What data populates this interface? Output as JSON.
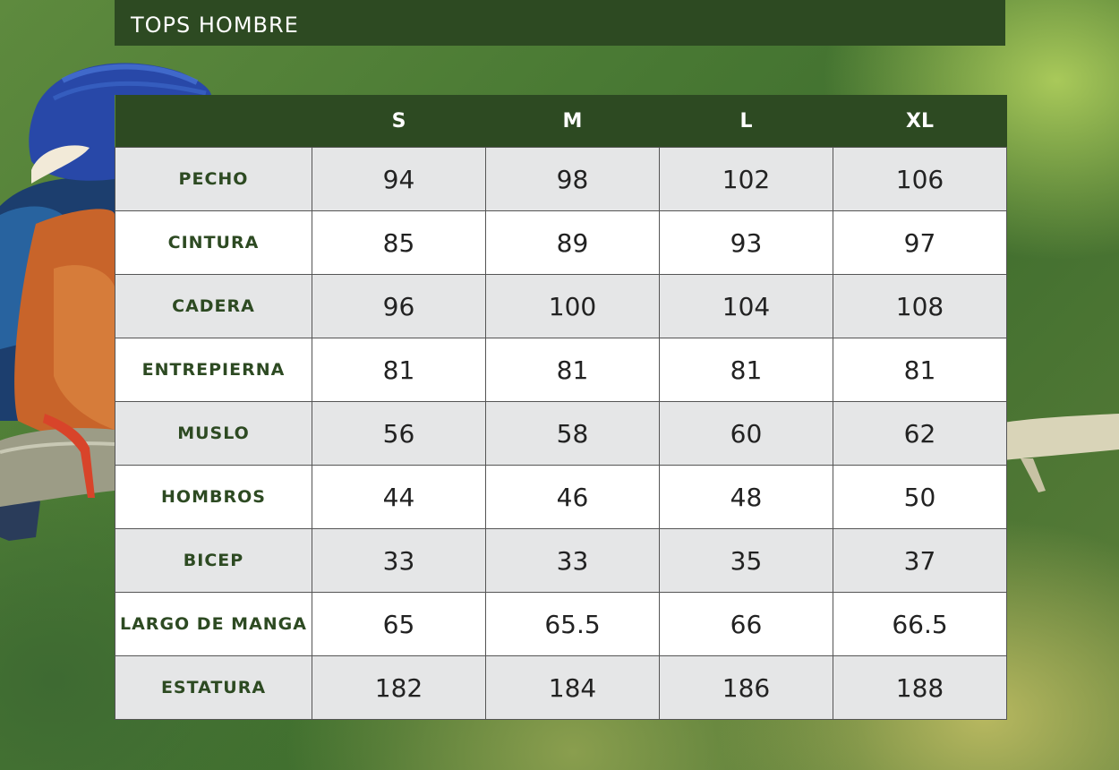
{
  "title": "TOPS HOMBRE",
  "table": {
    "columns": [
      "S",
      "M",
      "L",
      "XL"
    ],
    "rows": [
      {
        "label": "PECHO",
        "values": [
          "94",
          "98",
          "102",
          "106"
        ]
      },
      {
        "label": "CINTURA",
        "values": [
          "85",
          "89",
          "93",
          "97"
        ]
      },
      {
        "label": "CADERA",
        "values": [
          "96",
          "100",
          "104",
          "108"
        ]
      },
      {
        "label": "ENTREPIERNA",
        "values": [
          "81",
          "81",
          "81",
          "81"
        ]
      },
      {
        "label": "MUSLO",
        "values": [
          "56",
          "58",
          "60",
          "62"
        ]
      },
      {
        "label": "HOMBROS",
        "values": [
          "44",
          "46",
          "48",
          "50"
        ]
      },
      {
        "label": "BICEP",
        "values": [
          "33",
          "33",
          "35",
          "37"
        ]
      },
      {
        "label": "LARGO DE MANGA",
        "values": [
          "65",
          "65.5",
          "66",
          "66.5"
        ]
      },
      {
        "label": "ESTATURA",
        "values": [
          "182",
          "184",
          "186",
          "188"
        ]
      }
    ]
  },
  "colors": {
    "header_green": "#2d4a22",
    "row_alt": "#e5e6e7",
    "row_white": "#ffffff",
    "label_green": "#2d4a22"
  }
}
